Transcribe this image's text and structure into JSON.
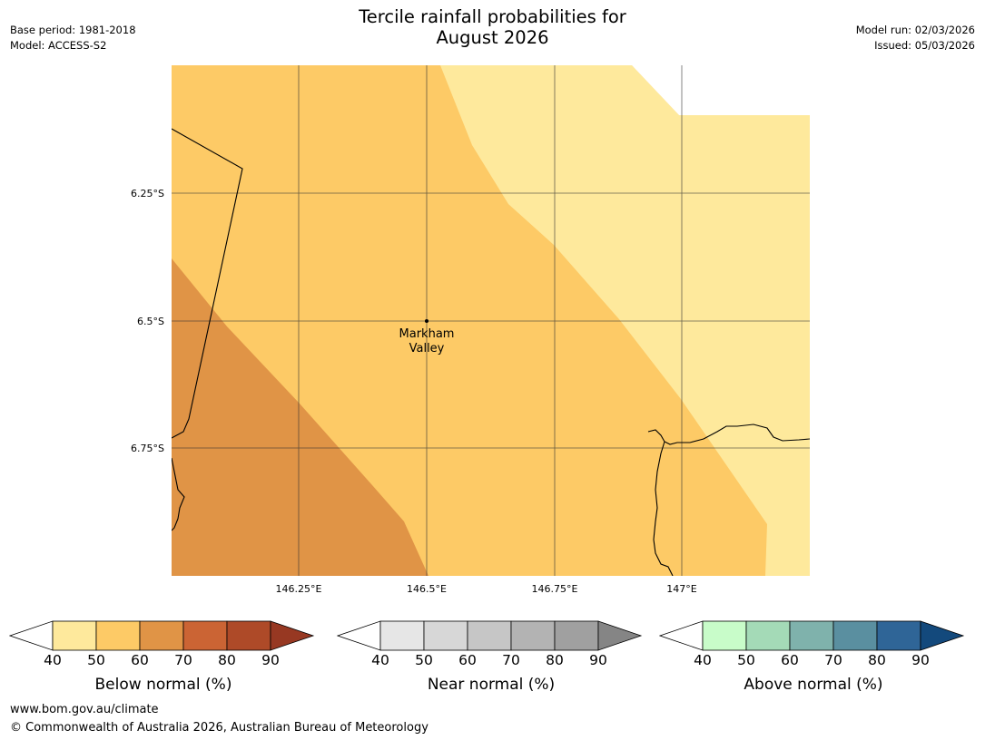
{
  "header": {
    "title_line1": "Tercile rainfall probabilities for",
    "title_line2": "August 2026",
    "base_period": "Base period: 1981-2018",
    "model": "Model: ACCESS-S2",
    "model_run": "Model run: 02/03/2026",
    "issued": "Issued: 05/03/2026"
  },
  "map": {
    "lat_labels": [
      "6.25°S",
      "6.5°S",
      "6.75°S"
    ],
    "lon_labels": [
      "146.25°E",
      "146.5°E",
      "146.75°E",
      "147°E"
    ],
    "place_line1": "Markham",
    "place_line2": "Valley",
    "colors": {
      "band_40_50": "#fee99c",
      "band_50_60": "#fdca66",
      "band_60_70": "#e09446"
    }
  },
  "legends": [
    {
      "label": "Below normal (%)",
      "ticks": [
        "40",
        "50",
        "60",
        "70",
        "80",
        "90"
      ],
      "colors": [
        "#fee99c",
        "#fdca66",
        "#e09446",
        "#cb6434",
        "#ae4a28"
      ],
      "arrow_color": "#973822"
    },
    {
      "label": "Near normal (%)",
      "ticks": [
        "40",
        "50",
        "60",
        "70",
        "80",
        "90"
      ],
      "colors": [
        "#e6e6e6",
        "#d7d7d7",
        "#c6c6c6",
        "#b3b3b3",
        "#a0a0a0"
      ],
      "arrow_color": "#858585"
    },
    {
      "label": "Above normal (%)",
      "ticks": [
        "40",
        "50",
        "60",
        "70",
        "80",
        "90"
      ],
      "colors": [
        "#c8fcc9",
        "#a4dab7",
        "#7fb2ac",
        "#5a8fa0",
        "#2f6597"
      ],
      "arrow_color": "#13497c"
    }
  ],
  "footer": {
    "url": "www.bom.gov.au/climate",
    "copyright": "© Commonwealth of Australia 2026, Australian Bureau of Meteorology"
  }
}
